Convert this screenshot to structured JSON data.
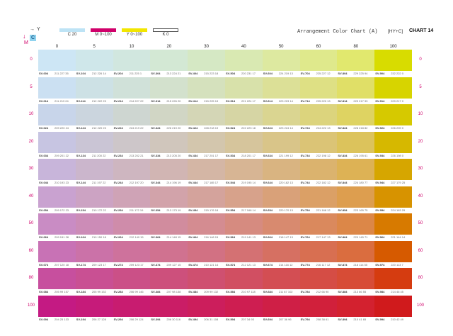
{
  "header": {
    "title": "Arrangement Color Chart  (A)",
    "mode": "[HY+C]",
    "chart_number": "CHART 14",
    "axis_y": "Y",
    "axis_m": "M",
    "c_badge": "C"
  },
  "legend": [
    {
      "label": "C  20",
      "color": "#bde3f5"
    },
    {
      "label": "M  0~100",
      "color": "#d0006a"
    },
    {
      "label": "Y  0~100",
      "color": "#f2e600"
    },
    {
      "label": "K  0",
      "color": "#ffffff"
    }
  ],
  "columns": [
    "0",
    "5",
    "10",
    "20",
    "30",
    "40",
    "50",
    "60",
    "80",
    "100"
  ],
  "rows": [
    {
      "m": "0",
      "codes": [
        "SV-004",
        "SV-104",
        "SV-204",
        "SV-304",
        "SV-404",
        "SV-504",
        "SV-604",
        "SV-704",
        "SV-804",
        "SV-904"
      ],
      "vals": [
        "211 227 35",
        "212 226 14",
        "211 225 1",
        "213 224 21",
        "215 223 18",
        "220 231 17",
        "224 219 13",
        "225 227 12",
        "229 225 94",
        "232 222 0"
      ]
    },
    {
      "m": "5",
      "codes": [
        "SV-014",
        "SV-114",
        "SV-214",
        "SV-314",
        "SV-414",
        "SV-514",
        "SV-614",
        "SV-714",
        "SV-814",
        "SV-914"
      ],
      "vals": [
        "211 219 24",
        "212 222 23",
        "214 227 22",
        "215 226 20",
        "215 225 19",
        "221 224 17",
        "223 223 14",
        "225 220 13",
        "229 217 93",
        "229 217 0"
      ]
    },
    {
      "m": "10",
      "codes": [
        "SV-024",
        "SV-124",
        "SV-224",
        "SV-324",
        "SV-424",
        "SV-524",
        "SV-624",
        "SV-724",
        "SV-824",
        "SV-924"
      ],
      "vals": [
        "209 220 24",
        "212 220 23",
        "224 219 22",
        "226 219 20",
        "228 218 19",
        "222 223 18",
        "223 224 14",
        "224 222 13",
        "228 218 82",
        "226 209 0"
      ]
    },
    {
      "m": "20",
      "codes": [
        "SV-034",
        "SV-134",
        "SV-234",
        "SV-334",
        "SV-434",
        "SV-534",
        "SV-634",
        "SV-734",
        "SV-834",
        "SV-934"
      ],
      "vals": [
        "209 201 22",
        "211 200 22",
        "213 202 21",
        "213 205 20",
        "217 201 17",
        "218 201 17",
        "221 199 12",
        "222 198 12",
        "226 195 61",
        "226 198 0"
      ]
    },
    {
      "m": "30",
      "codes": [
        "SV-044",
        "SV-144",
        "SV-244",
        "SV-344",
        "SV-444",
        "SV-544",
        "SV-644",
        "SV-744",
        "SV-844",
        "SV-944"
      ],
      "vals": [
        "210 193 23",
        "211 197 22",
        "212 197 20",
        "214 196 19",
        "217 185 17",
        "219 195 14",
        "220 182 13",
        "222 182 12",
        "224 180 77",
        "227 179 25"
      ]
    },
    {
      "m": "40",
      "codes": [
        "SV-054",
        "SV-154",
        "SV-254",
        "SV-354",
        "SV-454",
        "SV-554",
        "SV-654",
        "SV-754",
        "SV-854",
        "SV-954"
      ],
      "vals": [
        "209 172 23",
        "210 172 22",
        "211 172 19",
        "213 173 19",
        "215 176 18",
        "217 168 14",
        "220 170 13",
        "221 168 12",
        "223 165 75",
        "224 163 29"
      ]
    },
    {
      "m": "50",
      "codes": [
        "SV-064",
        "SV-164",
        "SV-264",
        "SV-364",
        "SV-464",
        "SV-564",
        "SV-664",
        "SV-764",
        "SV-864",
        "SV-964"
      ],
      "vals": [
        "209 151 28",
        "210 150 18",
        "212 149 15",
        "214 148 15",
        "216 148 15",
        "219 141 13",
        "218 147 13",
        "217 147 13",
        "220 145 71",
        "221 144 14"
      ]
    },
    {
      "m": "60",
      "codes": [
        "SV-074",
        "SV-174",
        "SV-274",
        "SV-374",
        "SV-474",
        "SV-574",
        "SV-674",
        "SV-774",
        "SV-874",
        "SV-974"
      ],
      "vals": [
        "207 120 18",
        "209 123 17",
        "209 123 17",
        "209 127 15",
        "210 121 14",
        "212 121 13",
        "214 116 12",
        "216 117 12",
        "218 114 55",
        "220 113 7"
      ]
    },
    {
      "m": "80",
      "codes": [
        "SV-084",
        "SV-184",
        "SV-284",
        "SV-384",
        "SV-484",
        "SV-584",
        "SV-684",
        "SV-784",
        "SV-884",
        "SV-984"
      ],
      "vals": [
        "205 99 157",
        "205 99 152",
        "206 99 146",
        "207 98 138",
        "209 99 132",
        "210 97 118",
        "211 87 102",
        "212 66 90",
        "213 66 55",
        "214 46 45"
      ]
    },
    {
      "m": "100",
      "codes": [
        "SV-094",
        "SV-194",
        "SV-294",
        "SV-394",
        "SV-494",
        "SV-594",
        "SV-694",
        "SV-794",
        "SV-894",
        "SV-994"
      ],
      "vals": [
        "204 25 133",
        "206 27 128",
        "206 29 124",
        "206 30 116",
        "206 31 108",
        "207 34 93",
        "207 36 96",
        "208 38 61",
        "210 41 65",
        "210 42 49"
      ]
    }
  ],
  "row_colors": [
    [
      "#cde6f5",
      "#cfe7ea",
      "#d1e7df",
      "#d3e8d4",
      "#d5e8c4",
      "#d9e9b2",
      "#dde9a0",
      "#dfe98c",
      "#e1e86e",
      "#d8dc00"
    ],
    [
      "#cbe0f2",
      "#cde1e5",
      "#d0e1d9",
      "#d3e1cd",
      "#d5e1bd",
      "#d8e1aa",
      "#dce097",
      "#dee084",
      "#e0df67",
      "#d7d400"
    ],
    [
      "#c8d5ea",
      "#cbd5de",
      "#ced6d1",
      "#d1d6c5",
      "#d4d6b6",
      "#d6d5a4",
      "#dad591",
      "#dcd47d",
      "#ded362",
      "#d6c900"
    ],
    [
      "#c7c5e2",
      "#cac5d5",
      "#cdc6c9",
      "#d0c6bc",
      "#d3c6ad",
      "#d6c59c",
      "#d9c589",
      "#dbc476",
      "#dcc35c",
      "#d6b800"
    ],
    [
      "#c8b5da",
      "#cbb6cc",
      "#ceb6c0",
      "#d1b5b3",
      "#d4b6a5",
      "#d7b594",
      "#d9b481",
      "#dbb36e",
      "#ddb255",
      "#d6a600"
    ],
    [
      "#c9a2d0",
      "#cca3c3",
      "#cfa3b6",
      "#d2a3aa",
      "#d4a39c",
      "#d7a28b",
      "#d9a179",
      "#dba066",
      "#dd9e4f",
      "#d79300"
    ],
    [
      "#c98cc4",
      "#cc8cb7",
      "#cf8caa",
      "#d18c9e",
      "#d48c91",
      "#d68b80",
      "#d88a6f",
      "#da895d",
      "#dc8748",
      "#d77a00"
    ],
    [
      "#c872b5",
      "#cb72a8",
      "#ce729c",
      "#d07290",
      "#d27183",
      "#d47173",
      "#d67062",
      "#d86f51",
      "#da6d3f",
      "#d65a00"
    ],
    [
      "#c74f9e",
      "#c95093",
      "#cb5087",
      "#cd507c",
      "#cf5070",
      "#d14f62",
      "#d34e53",
      "#d54d45",
      "#d74c36",
      "#d53c10"
    ],
    [
      "#c41a83",
      "#c61b7a",
      "#c81c70",
      "#ca1d66",
      "#cc1e5c",
      "#ce1e51",
      "#cf1f46",
      "#d1203b",
      "#d3212f",
      "#d01a1c"
    ]
  ]
}
